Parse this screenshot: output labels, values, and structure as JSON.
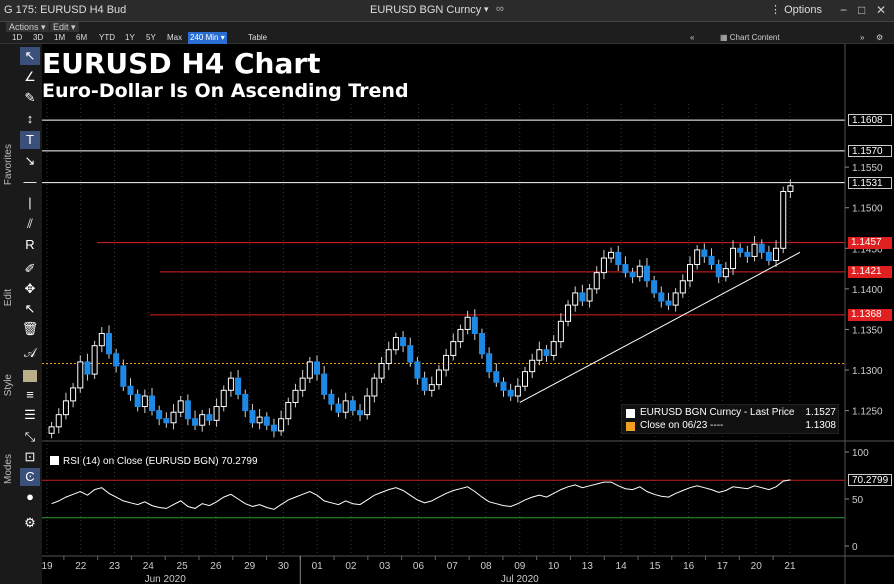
{
  "window": {
    "title": "G 175: EURUSD H4 Bud",
    "ticker": "EURUSD BGN Curncy",
    "options": "Options"
  },
  "menu": {
    "actions": "Actions",
    "edit": "Edit"
  },
  "toolbar": {
    "ranges": [
      "1D",
      "3D",
      "1M",
      "6M",
      "YTD",
      "1Y",
      "5Y",
      "Max"
    ],
    "interval": "240 Min",
    "table": "Table",
    "chart_content": "Chart Content"
  },
  "sidebar": {
    "favorites": "Favorites",
    "edit": "Edit",
    "style": "Style",
    "modes": "Modes"
  },
  "chart": {
    "title": "EURUSD H4 Chart",
    "subtitle": "Euro-Dollar Is On Ascending Trend",
    "price_labels": [
      {
        "text": "1.1608",
        "color": "#ffffff"
      },
      {
        "text": "1.1570",
        "color": "#ffffff"
      },
      {
        "text": "1.1531",
        "color": "#ffffff"
      },
      {
        "text": "1.1457",
        "color": "#e02020"
      },
      {
        "text": "1.1421",
        "color": "#e02020"
      },
      {
        "text": "1.1368",
        "color": "#e02020"
      }
    ],
    "legend": {
      "row1_label": "EURUSD BGN Curncy - Last Price",
      "row1_value": "1.1527",
      "row2_label": "Close on 06/23 ----",
      "row2_value": "1.1308"
    },
    "rsi_legend": "RSI (14) on Close (EURUSD BGN) 70.2799",
    "rsi_value_label": "70.2799",
    "month_labels": [
      "Jun 2020",
      "Jul 2020"
    ]
  },
  "chart_data": {
    "type": "candlestick",
    "price_axis_ticks": [
      1.125,
      1.13,
      1.135,
      1.14,
      1.145,
      1.15,
      1.155
    ],
    "price_ylim": [
      1.1215,
      1.165
    ],
    "horizontal_levels": [
      {
        "value": 1.1608,
        "color": "#ffffff"
      },
      {
        "value": 1.157,
        "color": "#ffffff"
      },
      {
        "value": 1.1531,
        "color": "#ffffff"
      },
      {
        "value": 1.1457,
        "color": "#e02020"
      },
      {
        "value": 1.1421,
        "color": "#e02020"
      },
      {
        "value": 1.1368,
        "color": "#e02020"
      },
      {
        "value": 1.1308,
        "color": "#f0a020"
      }
    ],
    "trendline": [
      {
        "x": "09",
        "y": 1.126
      },
      {
        "x": "21",
        "y": 1.1445
      }
    ],
    "x_ticks": [
      "19",
      "22",
      "23",
      "24",
      "25",
      "26",
      "29",
      "30",
      "01",
      "02",
      "03",
      "06",
      "07",
      "08",
      "09",
      "10",
      "13",
      "14",
      "15",
      "16",
      "17",
      "20",
      "21"
    ],
    "last_price": 1.1527,
    "rsi_axis_ticks": [
      0,
      50,
      100
    ],
    "rsi_levels": [
      70,
      30
    ],
    "rsi_last": 70.2799,
    "closes": [
      1.123,
      1.1245,
      1.1262,
      1.1278,
      1.131,
      1.1295,
      1.133,
      1.1345,
      1.132,
      1.1305,
      1.128,
      1.127,
      1.1255,
      1.1268,
      1.125,
      1.124,
      1.1235,
      1.1248,
      1.1262,
      1.124,
      1.1232,
      1.1245,
      1.1238,
      1.1255,
      1.1275,
      1.129,
      1.127,
      1.125,
      1.1235,
      1.1242,
      1.1232,
      1.1225,
      1.124,
      1.126,
      1.1275,
      1.129,
      1.131,
      1.1295,
      1.127,
      1.1258,
      1.1248,
      1.1262,
      1.125,
      1.1245,
      1.1268,
      1.129,
      1.1308,
      1.1325,
      1.134,
      1.133,
      1.131,
      1.129,
      1.1275,
      1.1282,
      1.13,
      1.1318,
      1.1335,
      1.135,
      1.1365,
      1.1345,
      1.132,
      1.1298,
      1.1285,
      1.1275,
      1.1268,
      1.128,
      1.1298,
      1.1312,
      1.1325,
      1.1318,
      1.1335,
      1.136,
      1.138,
      1.1395,
      1.1385,
      1.14,
      1.142,
      1.1438,
      1.1445,
      1.143,
      1.142,
      1.1415,
      1.1428,
      1.141,
      1.1395,
      1.1385,
      1.138,
      1.1395,
      1.141,
      1.143,
      1.1448,
      1.144,
      1.143,
      1.1415,
      1.1425,
      1.145,
      1.1445,
      1.144,
      1.1455,
      1.1445,
      1.1435,
      1.145,
      1.152,
      1.1527
    ],
    "rsi": [
      45,
      48,
      52,
      55,
      58,
      54,
      60,
      62,
      56,
      52,
      48,
      46,
      44,
      47,
      43,
      41,
      40,
      44,
      48,
      42,
      40,
      45,
      43,
      47,
      52,
      55,
      50,
      45,
      42,
      44,
      41,
      39,
      44,
      49,
      52,
      55,
      58,
      54,
      48,
      46,
      44,
      48,
      45,
      44,
      49,
      54,
      57,
      60,
      62,
      59,
      54,
      49,
      46,
      48,
      52,
      56,
      59,
      61,
      63,
      58,
      52,
      47,
      45,
      43,
      42,
      45,
      49,
      52,
      54,
      52,
      56,
      60,
      63,
      65,
      62,
      64,
      66,
      68,
      68,
      64,
      61,
      60,
      63,
      58,
      55,
      53,
      52,
      56,
      59,
      62,
      64,
      62,
      60,
      57,
      59,
      63,
      62,
      61,
      64,
      62,
      60,
      63,
      69,
      70.2799
    ]
  }
}
